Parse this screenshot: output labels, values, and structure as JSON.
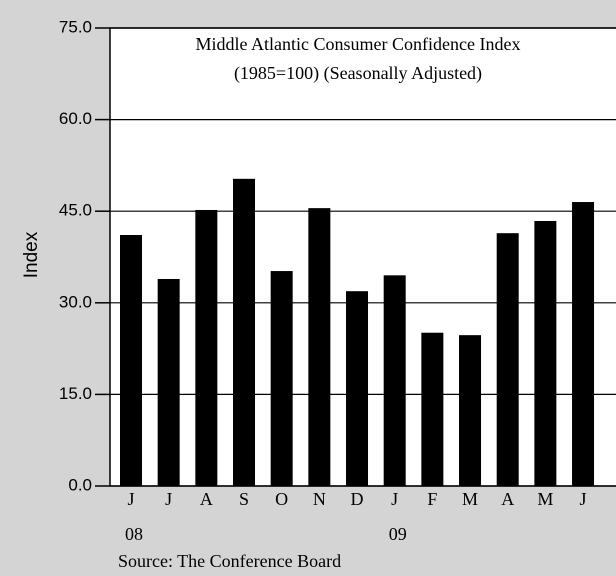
{
  "chart_data": {
    "type": "bar",
    "title": "Middle Atlantic Consumer Confidence Index",
    "subtitle": "(1985=100) (Seasonally Adjusted)",
    "y_label": "Index",
    "source": "Source: The Conference Board",
    "categories": [
      "J",
      "J",
      "A",
      "S",
      "O",
      "N",
      "D",
      "J",
      "F",
      "M",
      "A",
      "M",
      "J"
    ],
    "years": [
      "08",
      null,
      null,
      null,
      null,
      null,
      null,
      "09",
      null,
      null,
      null,
      null,
      null
    ],
    "values": [
      41.1,
      33.9,
      45.2,
      50.3,
      35.2,
      45.5,
      31.9,
      34.5,
      25.1,
      24.7,
      41.4,
      43.4,
      46.5
    ],
    "color": "#000000",
    "ylim": [
      0,
      75
    ],
    "yticks": [
      {
        "value": 0,
        "label": "0.0"
      },
      {
        "value": 15,
        "label": "15.0"
      },
      {
        "value": 30,
        "label": "30.0"
      },
      {
        "value": 45,
        "label": "45.0"
      },
      {
        "value": 60,
        "label": "60.0"
      },
      {
        "value": 75,
        "label": "75.0"
      }
    ],
    "grid": true
  }
}
